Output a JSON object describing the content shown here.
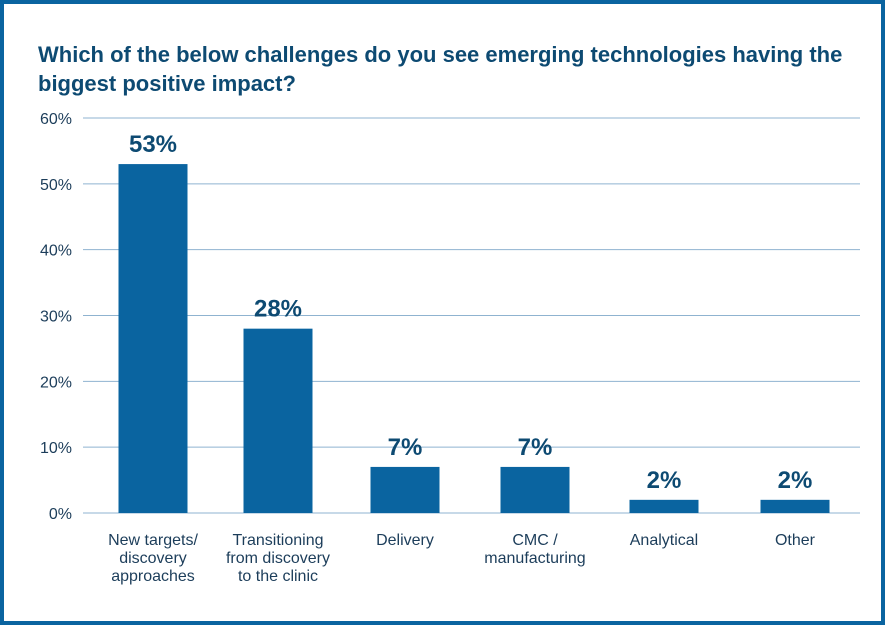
{
  "chart_data": {
    "type": "bar",
    "title": "Which of the below challenges do you see emerging technologies having the biggest positive impact?",
    "categories": [
      "New targets/ discovery approaches",
      "Transitioning from discovery to the clinic",
      "Delivery",
      "CMC / manufacturing",
      "Analytical",
      "Other"
    ],
    "category_lines": [
      [
        "New targets/",
        "discovery",
        "approaches"
      ],
      [
        "Transitioning",
        "from discovery",
        "to the clinic"
      ],
      [
        "Delivery"
      ],
      [
        "CMC /",
        "manufacturing"
      ],
      [
        "Analytical"
      ],
      [
        "Other"
      ]
    ],
    "values": [
      53,
      28,
      7,
      7,
      2,
      2
    ],
    "data_labels": [
      "53%",
      "28%",
      "7%",
      "7%",
      "2%",
      "2%"
    ],
    "xlabel": "",
    "ylabel": "",
    "ylim": [
      0,
      60
    ],
    "yticks": [
      "0%",
      "10%",
      "20%",
      "30%",
      "40%",
      "50%",
      "60%"
    ],
    "grid": true,
    "colors": {
      "bar": "#0a64a0",
      "grid": "#8fb3d0",
      "title": "#0d4a72",
      "frame": "#0a64a0"
    }
  }
}
